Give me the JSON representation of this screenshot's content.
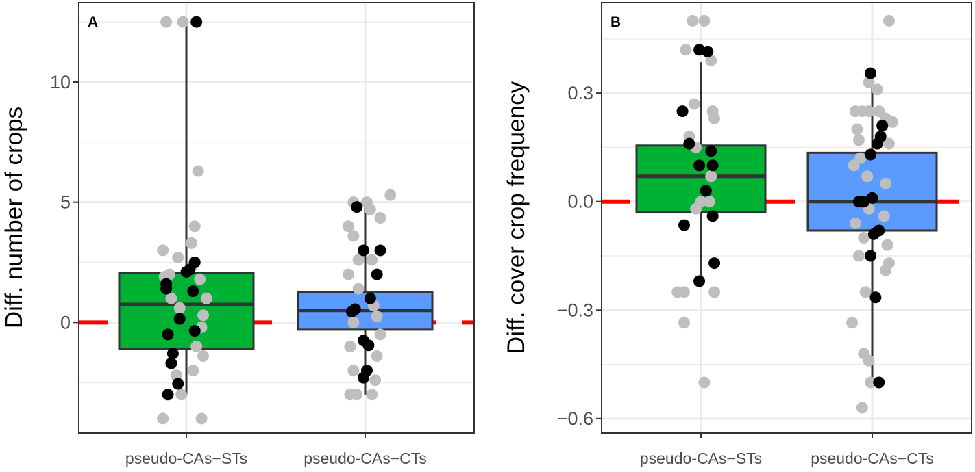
{
  "colors": {
    "background": "#ffffff",
    "grid": "#ebebeb",
    "border": "#333333",
    "box_line": "#333333",
    "reference_line": "#ff0000",
    "point_light": "#bebebe",
    "point_dark": "#000000"
  },
  "chart_data": [
    {
      "type": "box",
      "panel": "A",
      "ylabel": "Diff. number of crops",
      "yticks": [
        0,
        5,
        10
      ],
      "ylim": [
        -4.6,
        13.3
      ],
      "reference_line": 0,
      "categories": [
        "pseudo-CAs−STs",
        "pseudo-CAs−CTs"
      ],
      "boxes": [
        {
          "category": "pseudo-CAs−STs",
          "fill": "#00b233",
          "q1": -1.1,
          "median": 0.75,
          "q3": 2.05,
          "whisker_low": -3,
          "whisker_high": 12.5
        },
        {
          "category": "pseudo-CAs−CTs",
          "fill": "#5b9bff",
          "q1": -0.3,
          "median": 0.5,
          "q3": 1.25,
          "whisker_low": -3,
          "whisker_high": 5
        }
      ],
      "points": [
        {
          "category": 0,
          "group": "light",
          "jitter": -0.12,
          "value": 12.5
        },
        {
          "category": 0,
          "group": "light",
          "jitter": -0.02,
          "value": 12.5
        },
        {
          "category": 0,
          "group": "dark",
          "jitter": 0.06,
          "value": 12.5
        },
        {
          "category": 0,
          "group": "light",
          "jitter": 0.07,
          "value": 6.3
        },
        {
          "category": 0,
          "group": "light",
          "jitter": 0.05,
          "value": 4.0
        },
        {
          "category": 0,
          "group": "light",
          "jitter": 0.03,
          "value": 3.3
        },
        {
          "category": 0,
          "group": "light",
          "jitter": -0.14,
          "value": 3.0
        },
        {
          "category": 0,
          "group": "light",
          "jitter": -0.05,
          "value": 2.7
        },
        {
          "category": 0,
          "group": "light",
          "jitter": 0.04,
          "value": 2.4
        },
        {
          "category": 0,
          "group": "dark",
          "jitter": 0.05,
          "value": 2.5
        },
        {
          "category": 0,
          "group": "dark",
          "jitter": 0.02,
          "value": 2.2
        },
        {
          "category": 0,
          "group": "dark",
          "jitter": 0.0,
          "value": 2.1
        },
        {
          "category": 0,
          "group": "light",
          "jitter": -0.1,
          "value": 2.0
        },
        {
          "category": 0,
          "group": "light",
          "jitter": -0.13,
          "value": 1.9
        },
        {
          "category": 0,
          "group": "light",
          "jitter": 0.08,
          "value": 1.8
        },
        {
          "category": 0,
          "group": "dark",
          "jitter": -0.12,
          "value": 1.6
        },
        {
          "category": 0,
          "group": "dark",
          "jitter": -0.12,
          "value": 1.4
        },
        {
          "category": 0,
          "group": "dark",
          "jitter": 0.04,
          "value": 1.3
        },
        {
          "category": 0,
          "group": "light",
          "jitter": -0.09,
          "value": 1.0
        },
        {
          "category": 0,
          "group": "light",
          "jitter": 0.12,
          "value": 1.0
        },
        {
          "category": 0,
          "group": "light",
          "jitter": -0.04,
          "value": 0.6
        },
        {
          "category": 0,
          "group": "light",
          "jitter": 0.1,
          "value": 0.3
        },
        {
          "category": 0,
          "group": "dark",
          "jitter": -0.04,
          "value": 0.15
        },
        {
          "category": 0,
          "group": "light",
          "jitter": 0.09,
          "value": -0.2
        },
        {
          "category": 0,
          "group": "dark",
          "jitter": 0.05,
          "value": -0.35
        },
        {
          "category": 0,
          "group": "dark",
          "jitter": -0.11,
          "value": -0.5
        },
        {
          "category": 0,
          "group": "light",
          "jitter": 0.06,
          "value": -1.0
        },
        {
          "category": 0,
          "group": "dark",
          "jitter": -0.08,
          "value": -1.3
        },
        {
          "category": 0,
          "group": "light",
          "jitter": 0.1,
          "value": -1.4
        },
        {
          "category": 0,
          "group": "dark",
          "jitter": -0.09,
          "value": -1.7
        },
        {
          "category": 0,
          "group": "light",
          "jitter": 0.04,
          "value": -2.0
        },
        {
          "category": 0,
          "group": "light",
          "jitter": -0.06,
          "value": -2.2
        },
        {
          "category": 0,
          "group": "dark",
          "jitter": -0.05,
          "value": -2.55
        },
        {
          "category": 0,
          "group": "light",
          "jitter": -0.03,
          "value": -3.0
        },
        {
          "category": 0,
          "group": "dark",
          "jitter": -0.11,
          "value": -3.0
        },
        {
          "category": 0,
          "group": "light",
          "jitter": -0.14,
          "value": -4.0
        },
        {
          "category": 0,
          "group": "light",
          "jitter": 0.09,
          "value": -4.0
        },
        {
          "category": 1,
          "group": "light",
          "jitter": 0.15,
          "value": 5.3
        },
        {
          "category": 1,
          "group": "light",
          "jitter": -0.07,
          "value": 5.0
        },
        {
          "category": 1,
          "group": "light",
          "jitter": 0.01,
          "value": 5.0
        },
        {
          "category": 1,
          "group": "dark",
          "jitter": -0.05,
          "value": 4.8
        },
        {
          "category": 1,
          "group": "light",
          "jitter": 0.03,
          "value": 4.7
        },
        {
          "category": 1,
          "group": "light",
          "jitter": 0.09,
          "value": 4.35
        },
        {
          "category": 1,
          "group": "light",
          "jitter": -0.1,
          "value": 4.0
        },
        {
          "category": 1,
          "group": "light",
          "jitter": -0.07,
          "value": 3.6
        },
        {
          "category": 1,
          "group": "dark",
          "jitter": -0.01,
          "value": 3.0
        },
        {
          "category": 1,
          "group": "dark",
          "jitter": 0.09,
          "value": 3.0
        },
        {
          "category": 1,
          "group": "light",
          "jitter": -0.04,
          "value": 2.6
        },
        {
          "category": 1,
          "group": "light",
          "jitter": 0.04,
          "value": 2.6
        },
        {
          "category": 1,
          "group": "dark",
          "jitter": 0.07,
          "value": 2.0
        },
        {
          "category": 1,
          "group": "light",
          "jitter": -0.1,
          "value": 2.0
        },
        {
          "category": 1,
          "group": "light",
          "jitter": -0.04,
          "value": 1.4
        },
        {
          "category": 1,
          "group": "dark",
          "jitter": 0.03,
          "value": 1.0
        },
        {
          "category": 1,
          "group": "light",
          "jitter": 0.05,
          "value": 0.7
        },
        {
          "category": 1,
          "group": "dark",
          "jitter": -0.06,
          "value": 0.55
        },
        {
          "category": 1,
          "group": "dark",
          "jitter": -0.08,
          "value": 0.45
        },
        {
          "category": 1,
          "group": "light",
          "jitter": 0.07,
          "value": 0.25
        },
        {
          "category": 1,
          "group": "light",
          "jitter": -0.07,
          "value": 0.0
        },
        {
          "category": 1,
          "group": "light",
          "jitter": 0.09,
          "value": -0.5
        },
        {
          "category": 1,
          "group": "dark",
          "jitter": -0.01,
          "value": -0.75
        },
        {
          "category": 1,
          "group": "dark",
          "jitter": 0.02,
          "value": -0.95
        },
        {
          "category": 1,
          "group": "light",
          "jitter": -0.09,
          "value": -1.0
        },
        {
          "category": 1,
          "group": "light",
          "jitter": 0.07,
          "value": -1.4
        },
        {
          "category": 1,
          "group": "light",
          "jitter": -0.07,
          "value": -2.0
        },
        {
          "category": 1,
          "group": "dark",
          "jitter": 0.01,
          "value": -2.0
        },
        {
          "category": 1,
          "group": "dark",
          "jitter": -0.01,
          "value": -2.3
        },
        {
          "category": 1,
          "group": "light",
          "jitter": 0.06,
          "value": -2.4
        },
        {
          "category": 1,
          "group": "light",
          "jitter": -0.05,
          "value": -3.0
        },
        {
          "category": 1,
          "group": "light",
          "jitter": -0.09,
          "value": -3.0
        },
        {
          "category": 1,
          "group": "light",
          "jitter": 0.04,
          "value": -3.0
        }
      ]
    },
    {
      "type": "box",
      "panel": "B",
      "ylabel": "Diff. cover crop frequency",
      "yticks": [
        -0.6,
        -0.3,
        0.0,
        0.3
      ],
      "ytick_labels": [
        "−0.6",
        "−0.3",
        "0.0",
        "0.3"
      ],
      "ylim": [
        -0.64,
        0.55
      ],
      "reference_line": 0,
      "categories": [
        "pseudo-CAs−STs",
        "pseudo-CAs−CTs"
      ],
      "boxes": [
        {
          "category": "pseudo-CAs−STs",
          "fill": "#00b233",
          "q1": -0.03,
          "median": 0.07,
          "q3": 0.155,
          "whisker_low": -0.22,
          "whisker_high": 0.385
        },
        {
          "category": "pseudo-CAs−CTs",
          "fill": "#5b9bff",
          "q1": -0.08,
          "median": 0.0,
          "q3": 0.135,
          "whisker_low": -0.5,
          "whisker_high": 0.36
        }
      ],
      "points": [
        {
          "category": 0,
          "group": "light",
          "jitter": -0.05,
          "value": 0.5
        },
        {
          "category": 0,
          "group": "light",
          "jitter": 0.02,
          "value": 0.5
        },
        {
          "category": 0,
          "group": "light",
          "jitter": -0.09,
          "value": 0.42
        },
        {
          "category": 0,
          "group": "dark",
          "jitter": -0.01,
          "value": 0.42
        },
        {
          "category": 0,
          "group": "dark",
          "jitter": 0.04,
          "value": 0.415
        },
        {
          "category": 0,
          "group": "light",
          "jitter": 0.06,
          "value": 0.39
        },
        {
          "category": 0,
          "group": "light",
          "jitter": -0.04,
          "value": 0.27
        },
        {
          "category": 0,
          "group": "light",
          "jitter": 0.07,
          "value": 0.25
        },
        {
          "category": 0,
          "group": "dark",
          "jitter": -0.11,
          "value": 0.25
        },
        {
          "category": 0,
          "group": "light",
          "jitter": 0.08,
          "value": 0.23
        },
        {
          "category": 0,
          "group": "light",
          "jitter": -0.07,
          "value": 0.18
        },
        {
          "category": 0,
          "group": "dark",
          "jitter": -0.07,
          "value": 0.16
        },
        {
          "category": 0,
          "group": "light",
          "jitter": -0.03,
          "value": 0.15
        },
        {
          "category": 0,
          "group": "dark",
          "jitter": 0.06,
          "value": 0.14
        },
        {
          "category": 0,
          "group": "dark",
          "jitter": -0.01,
          "value": 0.1
        },
        {
          "category": 0,
          "group": "dark",
          "jitter": 0.07,
          "value": 0.1
        },
        {
          "category": 0,
          "group": "light",
          "jitter": 0.06,
          "value": 0.07
        },
        {
          "category": 0,
          "group": "dark",
          "jitter": 0.03,
          "value": 0.03
        },
        {
          "category": 0,
          "group": "light",
          "jitter": 0.0,
          "value": 0.0
        },
        {
          "category": 0,
          "group": "light",
          "jitter": 0.05,
          "value": 0.0
        },
        {
          "category": 0,
          "group": "light",
          "jitter": -0.03,
          "value": -0.02
        },
        {
          "category": 0,
          "group": "dark",
          "jitter": 0.07,
          "value": -0.04
        },
        {
          "category": 0,
          "group": "dark",
          "jitter": -0.1,
          "value": -0.065
        },
        {
          "category": 0,
          "group": "dark",
          "jitter": 0.08,
          "value": -0.17
        },
        {
          "category": 0,
          "group": "dark",
          "jitter": -0.01,
          "value": -0.22
        },
        {
          "category": 0,
          "group": "light",
          "jitter": -0.14,
          "value": -0.25
        },
        {
          "category": 0,
          "group": "light",
          "jitter": -0.1,
          "value": -0.25
        },
        {
          "category": 0,
          "group": "light",
          "jitter": 0.08,
          "value": -0.25
        },
        {
          "category": 0,
          "group": "light",
          "jitter": -0.1,
          "value": -0.335
        },
        {
          "category": 0,
          "group": "light",
          "jitter": 0.02,
          "value": -0.5
        },
        {
          "category": 1,
          "group": "light",
          "jitter": 0.1,
          "value": 0.5
        },
        {
          "category": 1,
          "group": "dark",
          "jitter": -0.01,
          "value": 0.355
        },
        {
          "category": 1,
          "group": "light",
          "jitter": -0.02,
          "value": 0.33
        },
        {
          "category": 1,
          "group": "light",
          "jitter": 0.03,
          "value": 0.31
        },
        {
          "category": 1,
          "group": "light",
          "jitter": -0.1,
          "value": 0.25
        },
        {
          "category": 1,
          "group": "light",
          "jitter": -0.06,
          "value": 0.25
        },
        {
          "category": 1,
          "group": "light",
          "jitter": -0.02,
          "value": 0.25
        },
        {
          "category": 1,
          "group": "light",
          "jitter": 0.04,
          "value": 0.25
        },
        {
          "category": 1,
          "group": "light",
          "jitter": 0.08,
          "value": 0.23
        },
        {
          "category": 1,
          "group": "light",
          "jitter": 0.12,
          "value": 0.22
        },
        {
          "category": 1,
          "group": "dark",
          "jitter": 0.06,
          "value": 0.21
        },
        {
          "category": 1,
          "group": "light",
          "jitter": -0.09,
          "value": 0.2
        },
        {
          "category": 1,
          "group": "dark",
          "jitter": 0.05,
          "value": 0.18
        },
        {
          "category": 1,
          "group": "light",
          "jitter": -0.08,
          "value": 0.17
        },
        {
          "category": 1,
          "group": "dark",
          "jitter": 0.03,
          "value": 0.16
        },
        {
          "category": 1,
          "group": "light",
          "jitter": 0.1,
          "value": 0.16
        },
        {
          "category": 1,
          "group": "dark",
          "jitter": -0.01,
          "value": 0.13
        },
        {
          "category": 1,
          "group": "light",
          "jitter": -0.07,
          "value": 0.12
        },
        {
          "category": 1,
          "group": "light",
          "jitter": -0.11,
          "value": 0.1
        },
        {
          "category": 1,
          "group": "light",
          "jitter": -0.03,
          "value": 0.07
        },
        {
          "category": 1,
          "group": "light",
          "jitter": 0.08,
          "value": 0.05
        },
        {
          "category": 1,
          "group": "dark",
          "jitter": 0.0,
          "value": 0.01
        },
        {
          "category": 1,
          "group": "dark",
          "jitter": -0.08,
          "value": 0.0
        },
        {
          "category": 1,
          "group": "dark",
          "jitter": -0.05,
          "value": 0.0
        },
        {
          "category": 1,
          "group": "light",
          "jitter": -0.02,
          "value": -0.02
        },
        {
          "category": 1,
          "group": "light",
          "jitter": 0.07,
          "value": -0.04
        },
        {
          "category": 1,
          "group": "light",
          "jitter": -0.1,
          "value": -0.06
        },
        {
          "category": 1,
          "group": "dark",
          "jitter": 0.04,
          "value": -0.08
        },
        {
          "category": 1,
          "group": "dark",
          "jitter": 0.01,
          "value": -0.09
        },
        {
          "category": 1,
          "group": "light",
          "jitter": -0.05,
          "value": -0.1
        },
        {
          "category": 1,
          "group": "light",
          "jitter": 0.09,
          "value": -0.12
        },
        {
          "category": 1,
          "group": "light",
          "jitter": -0.08,
          "value": -0.15
        },
        {
          "category": 1,
          "group": "dark",
          "jitter": -0.01,
          "value": -0.15
        },
        {
          "category": 1,
          "group": "light",
          "jitter": 0.1,
          "value": -0.17
        },
        {
          "category": 1,
          "group": "light",
          "jitter": 0.08,
          "value": -0.19
        },
        {
          "category": 1,
          "group": "light",
          "jitter": -0.04,
          "value": -0.25
        },
        {
          "category": 1,
          "group": "dark",
          "jitter": 0.02,
          "value": -0.265
        },
        {
          "category": 1,
          "group": "light",
          "jitter": -0.12,
          "value": -0.335
        },
        {
          "category": 1,
          "group": "light",
          "jitter": -0.05,
          "value": -0.42
        },
        {
          "category": 1,
          "group": "light",
          "jitter": -0.02,
          "value": -0.44
        },
        {
          "category": 1,
          "group": "light",
          "jitter": -0.01,
          "value": -0.5
        },
        {
          "category": 1,
          "group": "dark",
          "jitter": 0.04,
          "value": -0.5
        },
        {
          "category": 1,
          "group": "light",
          "jitter": -0.06,
          "value": -0.57
        }
      ]
    }
  ]
}
